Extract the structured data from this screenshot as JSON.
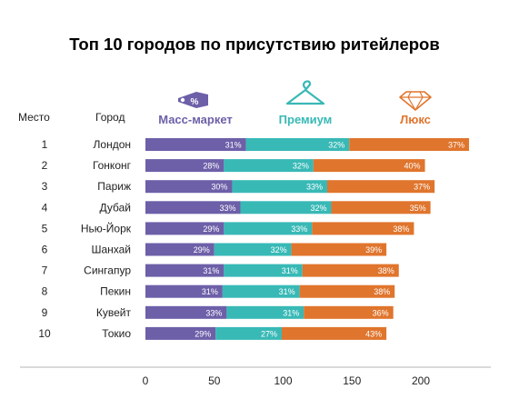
{
  "title": "Топ 10 городов по присутствию ритейлеров",
  "chart_data": {
    "type": "bar",
    "orientation": "horizontal",
    "stacked": true,
    "rank_header": "Место",
    "city_header": "Город",
    "categories": [
      "Лондон",
      "Гонконг",
      "Париж",
      "Дубай",
      "Нью-Йорк",
      "Шанхай",
      "Сингапур",
      "Пекин",
      "Кувейт",
      "Токио"
    ],
    "ranks": [
      "1",
      "2",
      "3",
      "4",
      "5",
      "6",
      "7",
      "8",
      "9",
      "10"
    ],
    "series": [
      {
        "name": "Масс-маркет",
        "color": "#6d5fa8",
        "icon": "price-tag-icon",
        "percent_labels": [
          "31%",
          "28%",
          "30%",
          "33%",
          "29%",
          "29%",
          "31%",
          "31%",
          "33%",
          "29%"
        ],
        "values": [
          73,
          57,
          63,
          69,
          57,
          50,
          57,
          56,
          59,
          51
        ]
      },
      {
        "name": "Премиум",
        "color": "#38b9b6",
        "icon": "hanger-icon",
        "percent_labels": [
          "32%",
          "32%",
          "33%",
          "32%",
          "33%",
          "32%",
          "31%",
          "31%",
          "31%",
          "27%"
        ],
        "values": [
          75,
          65,
          69,
          66,
          64,
          56,
          57,
          56,
          56,
          48
        ]
      },
      {
        "name": "Люкс",
        "color": "#e0752d",
        "icon": "diamond-icon",
        "percent_labels": [
          "37%",
          "40%",
          "37%",
          "35%",
          "38%",
          "39%",
          "38%",
          "38%",
          "36%",
          "43%"
        ],
        "values": [
          87,
          81,
          78,
          72,
          74,
          69,
          70,
          69,
          65,
          76
        ]
      }
    ],
    "xlim": [
      0,
      240
    ],
    "x_ticks": [
      "0",
      "50",
      "100",
      "150",
      "200"
    ],
    "grid": false,
    "legend": "top"
  }
}
